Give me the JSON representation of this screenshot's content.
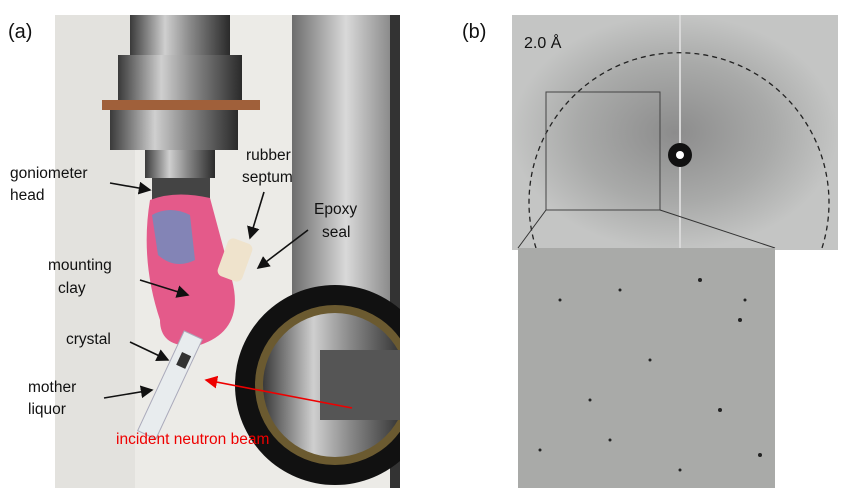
{
  "panel_a": {
    "label": "(a)",
    "annotations": [
      {
        "lines": [
          "goniometer",
          "head"
        ]
      },
      {
        "lines": [
          "rubber",
          "septum"
        ]
      },
      {
        "lines": [
          "Epoxy",
          "seal"
        ]
      },
      {
        "lines": [
          "mounting",
          "clay"
        ]
      },
      {
        "lines": [
          "crystal"
        ]
      },
      {
        "lines": [
          "mother",
          "liquor"
        ]
      },
      {
        "lines": [
          "incident neutron beam"
        ]
      }
    ]
  },
  "panel_b": {
    "label": "(b)",
    "resolution": "2.0 Å"
  }
}
